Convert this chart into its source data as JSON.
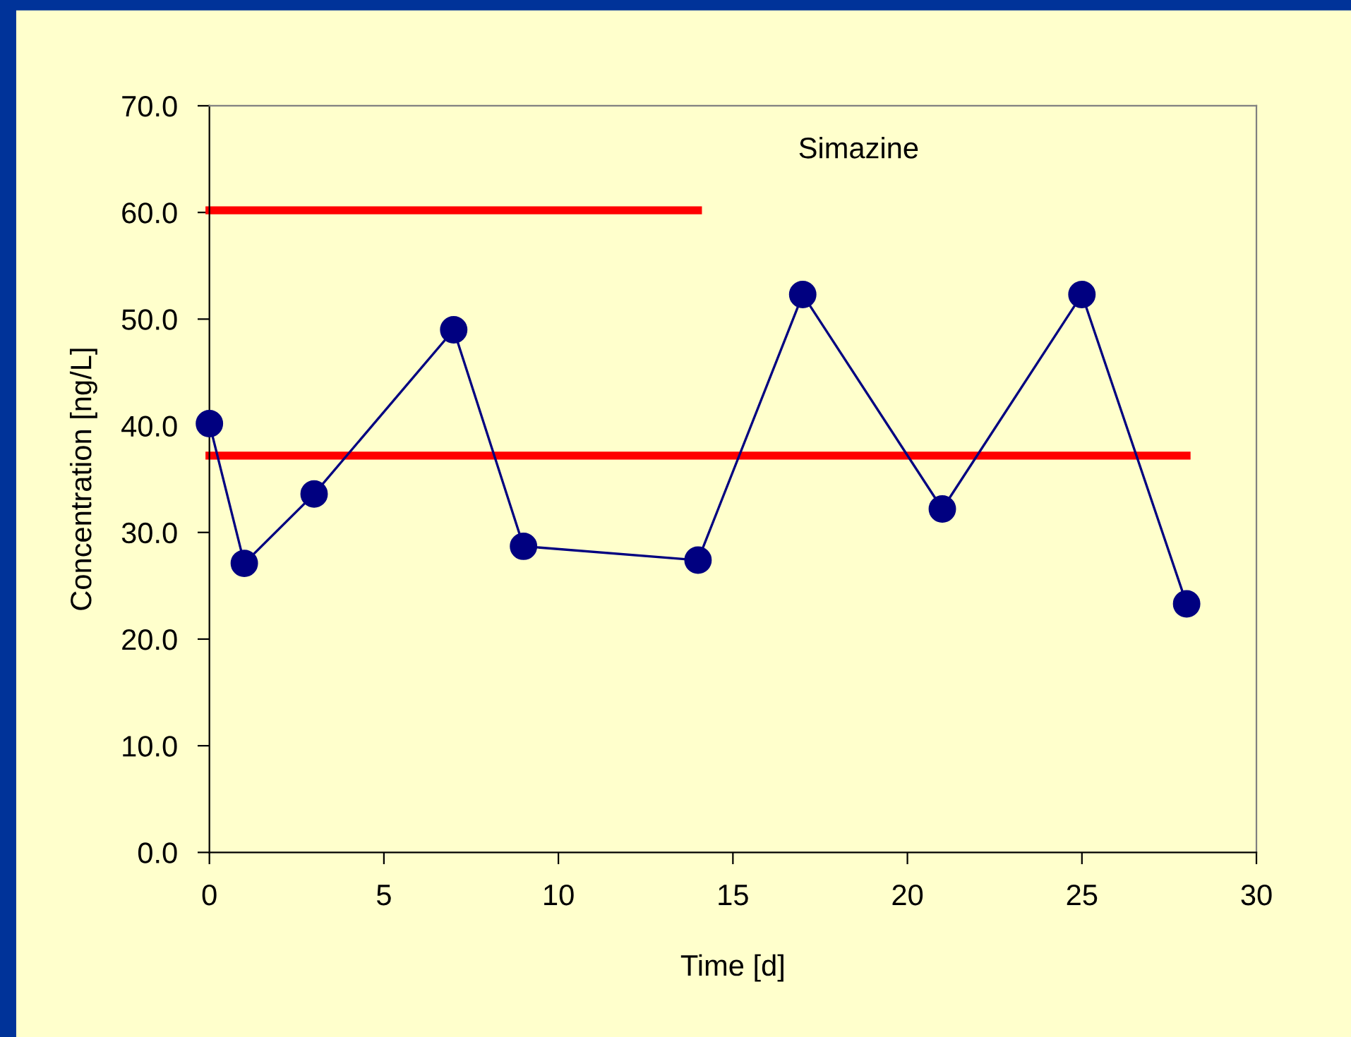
{
  "chart_data": {
    "type": "line",
    "title": "Simazine",
    "xlabel": "Time [d]",
    "ylabel": "Concentration [ng/L]",
    "xlim": [
      0,
      30
    ],
    "xticks": [
      0,
      5,
      10,
      15,
      20,
      25,
      30
    ],
    "ylim": [
      0,
      70
    ],
    "yticks": [
      {
        "value": 0,
        "label": "0.0"
      },
      {
        "value": 10,
        "label": "10.0"
      },
      {
        "value": 20,
        "label": "20.0"
      },
      {
        "value": 30,
        "label": "30.0"
      },
      {
        "value": 40,
        "label": "40.0"
      },
      {
        "value": 50,
        "label": "50.0"
      },
      {
        "value": 60,
        "label": "60.0"
      },
      {
        "value": 70,
        "label": "70.0"
      }
    ],
    "grid": false,
    "legend": false,
    "series": [
      {
        "color": "#000080",
        "marker": "circle",
        "line_style": "solid",
        "x": [
          0,
          1,
          3,
          7,
          9,
          14,
          17,
          21,
          25,
          28
        ],
        "values": [
          40.2,
          27.1,
          33.6,
          49.0,
          28.7,
          27.4,
          52.3,
          32.2,
          52.3,
          23.3
        ]
      },
      {
        "color": "#ff0000",
        "marker": "none",
        "line_style": "solid",
        "x": [
          0,
          14
        ],
        "values": [
          60.2,
          60.2
        ]
      },
      {
        "color": "#ff0000",
        "marker": "none",
        "line_style": "solid",
        "x": [
          0,
          28
        ],
        "values": [
          37.2,
          37.2
        ]
      }
    ]
  }
}
